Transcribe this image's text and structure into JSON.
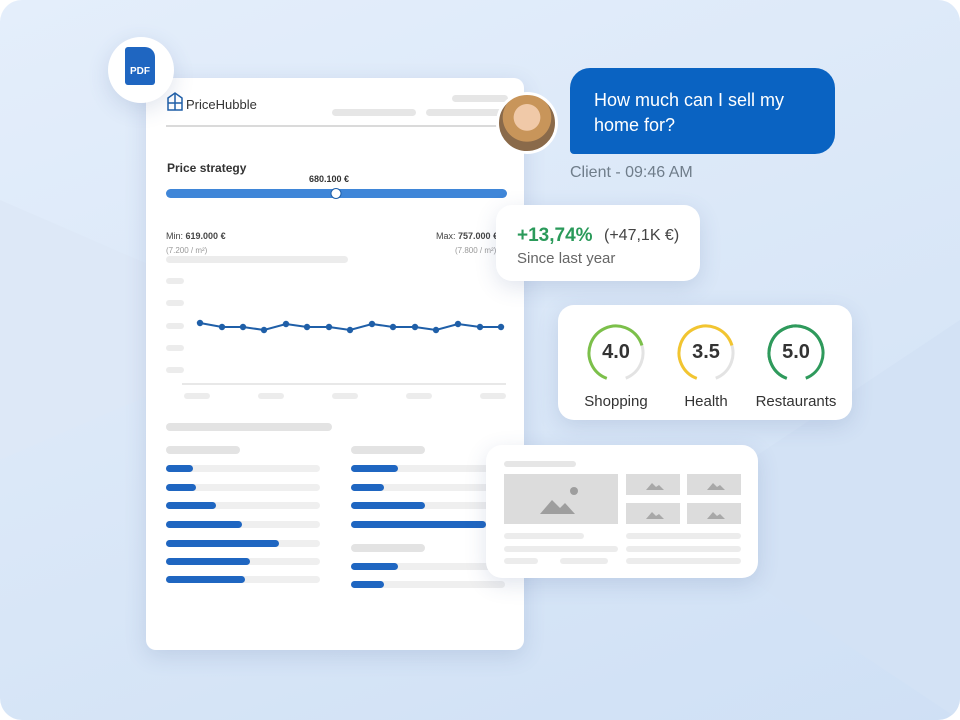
{
  "badge": "PDF",
  "report": {
    "brand": "PriceHubble",
    "section_title": "Price strategy",
    "price": "680.100 €",
    "min_label": "Min:",
    "min_value": "619.000 €",
    "min_sub": "(7.200 / m²)",
    "max_label": "Max:",
    "max_value": "757.000 €",
    "max_sub": "(7.800 / m²)"
  },
  "chat": {
    "message": "How much can I sell my home for?",
    "meta": "Client - 09:46 AM"
  },
  "stat": {
    "change": "+13,74%",
    "amount": "(+47,1K €)",
    "caption": "Since last year"
  },
  "scores": [
    {
      "score": "4.0",
      "label": "Shopping"
    },
    {
      "score": "3.5",
      "label": "Health"
    },
    {
      "score": "5.0",
      "label": "Restaurants"
    }
  ]
}
